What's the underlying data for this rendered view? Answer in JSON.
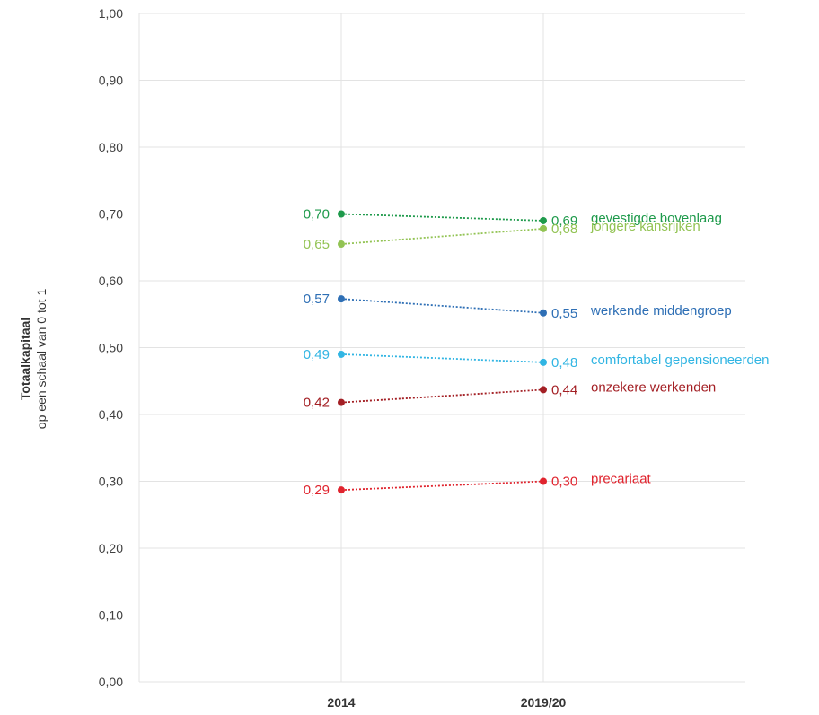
{
  "chart_data": {
    "type": "line",
    "x": [
      "2014",
      "2019/20"
    ],
    "ylabel": "Totaalkapitaal",
    "ylabel_sub": "op een schaal van 0 tot 1",
    "ylim": [
      0,
      1
    ],
    "yticks": [
      "0,00",
      "0,10",
      "0,20",
      "0,30",
      "0,40",
      "0,50",
      "0,60",
      "0,70",
      "0,80",
      "0,90",
      "1,00"
    ],
    "grid": true,
    "series": [
      {
        "name": "gevestigde bovenlaag",
        "values": [
          0.7,
          0.69
        ],
        "labels": [
          "0,70",
          "0,69"
        ],
        "color": "#1e9a4b"
      },
      {
        "name": "jongere kansrijken",
        "values": [
          0.655,
          0.678
        ],
        "labels": [
          "0,65",
          "0,68"
        ],
        "color": "#92c353"
      },
      {
        "name": "werkende middengroep",
        "values": [
          0.573,
          0.552
        ],
        "labels": [
          "0,57",
          "0,55"
        ],
        "color": "#2e6fb5"
      },
      {
        "name": "comfortabel gepensioneerden",
        "values": [
          0.49,
          0.478
        ],
        "labels": [
          "0,49",
          "0,48"
        ],
        "color": "#31b5e3"
      },
      {
        "name": "onzekere werkenden",
        "values": [
          0.418,
          0.437
        ],
        "labels": [
          "0,42",
          "0,44"
        ],
        "color": "#a31f24"
      },
      {
        "name": "precariaat",
        "values": [
          0.287,
          0.3
        ],
        "labels": [
          "0,29",
          "0,30"
        ],
        "color": "#e0242e"
      }
    ]
  }
}
